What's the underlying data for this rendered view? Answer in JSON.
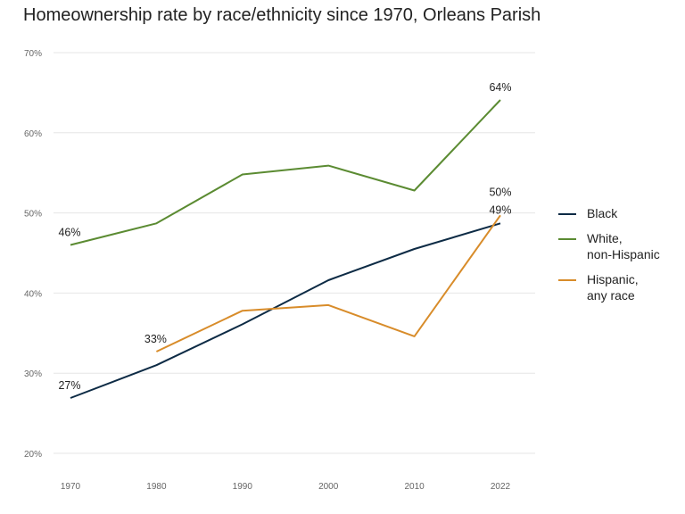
{
  "chart_data": {
    "type": "line",
    "title": "Homeownership rate by race/ethnicity since 1970, Orleans Parish",
    "xlabel": "",
    "ylabel": "",
    "x": [
      1970,
      1980,
      1990,
      2000,
      2010,
      2022
    ],
    "x_tick_labels": [
      "1970",
      "1980",
      "1990",
      "2000",
      "2010",
      "2022"
    ],
    "ylim": [
      20,
      70
    ],
    "y_ticks": [
      20,
      30,
      40,
      50,
      60,
      70
    ],
    "y_tick_labels": [
      "20%",
      "30%",
      "40%",
      "50%",
      "60%",
      "70%"
    ],
    "grid": "horizontal",
    "legend_position": "right",
    "series": [
      {
        "name": "Black",
        "color": "#0d2b45",
        "values": [
          26.9,
          31.0,
          36.1,
          41.6,
          45.5,
          48.7
        ],
        "labels": [
          {
            "index": 0,
            "text": "27%"
          },
          {
            "index": 5,
            "text": "49%"
          }
        ]
      },
      {
        "name": "White,\nnon-Hispanic",
        "color": "#5b8b32",
        "values": [
          46.0,
          48.7,
          54.8,
          55.9,
          52.8,
          64.1
        ],
        "labels": [
          {
            "index": 0,
            "text": "46%"
          },
          {
            "index": 5,
            "text": "64%"
          }
        ]
      },
      {
        "name": "Hispanic,\nany race",
        "color": "#d88c2a",
        "values": [
          null,
          32.7,
          37.8,
          38.5,
          34.6,
          49.7
        ],
        "labels": [
          {
            "index": 1,
            "text": "33%"
          },
          {
            "index": 5,
            "text": "50%"
          }
        ]
      }
    ]
  }
}
